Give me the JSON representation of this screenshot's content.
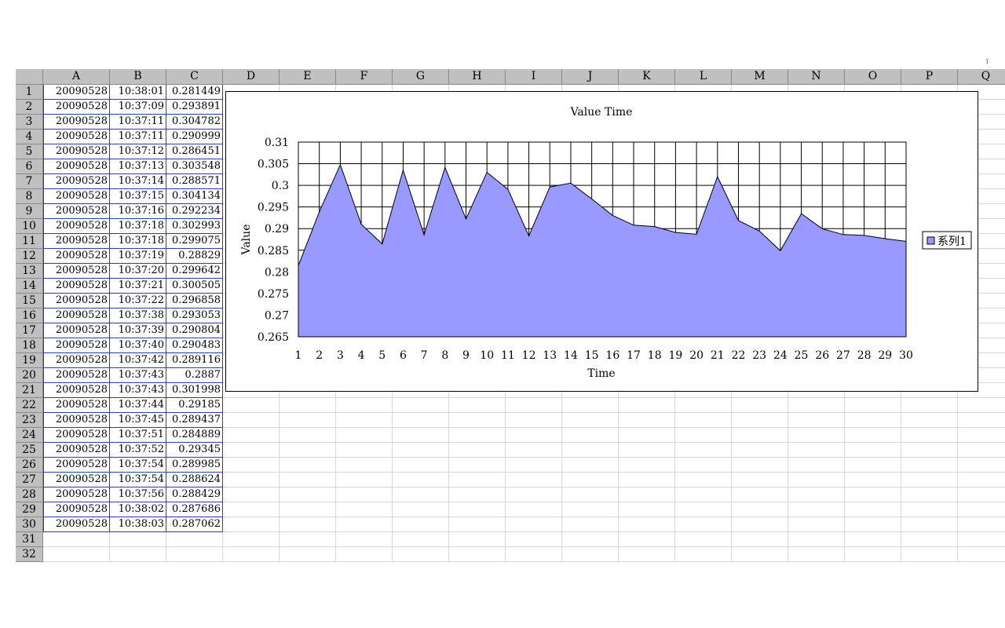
{
  "sheet": {
    "column_headers": [
      "A",
      "B",
      "C",
      "D",
      "E",
      "F",
      "G",
      "H",
      "I",
      "J",
      "K",
      "L",
      "M",
      "N",
      "O",
      "P",
      "Q"
    ],
    "row_headers": [
      "1",
      "2",
      "3",
      "4",
      "5",
      "6",
      "7",
      "8",
      "9",
      "10",
      "11",
      "12",
      "13",
      "14",
      "15",
      "16",
      "17",
      "18",
      "19",
      "20",
      "21",
      "22",
      "23",
      "24",
      "25",
      "26",
      "27",
      "28",
      "29",
      "30",
      "31",
      "32"
    ],
    "rows": [
      [
        "20090528",
        "10:38:01",
        "0.281449"
      ],
      [
        "20090528",
        "10:37:09",
        "0.293891"
      ],
      [
        "20090528",
        "10:37:11",
        "0.304782"
      ],
      [
        "20090528",
        "10:37:11",
        "0.290999"
      ],
      [
        "20090528",
        "10:37:12",
        "0.286451"
      ],
      [
        "20090528",
        "10:37:13",
        "0.303548"
      ],
      [
        "20090528",
        "10:37:14",
        "0.288571"
      ],
      [
        "20090528",
        "10:37:15",
        "0.304134"
      ],
      [
        "20090528",
        "10:37:16",
        "0.292234"
      ],
      [
        "20090528",
        "10:37:18",
        "0.302993"
      ],
      [
        "20090528",
        "10:37:18",
        "0.299075"
      ],
      [
        "20090528",
        "10:37:19",
        "0.28829"
      ],
      [
        "20090528",
        "10:37:20",
        "0.299642"
      ],
      [
        "20090528",
        "10:37:21",
        "0.300505"
      ],
      [
        "20090528",
        "10:37:22",
        "0.296858"
      ],
      [
        "20090528",
        "10:37:38",
        "0.293053"
      ],
      [
        "20090528",
        "10:37:39",
        "0.290804"
      ],
      [
        "20090528",
        "10:37:40",
        "0.290483"
      ],
      [
        "20090528",
        "10:37:42",
        "0.289116"
      ],
      [
        "20090528",
        "10:37:43",
        "0.2887"
      ],
      [
        "20090528",
        "10:37:43",
        "0.301998"
      ],
      [
        "20090528",
        "10:37:44",
        "0.29185"
      ],
      [
        "20090528",
        "10:37:45",
        "0.289437"
      ],
      [
        "20090528",
        "10:37:51",
        "0.284889"
      ],
      [
        "20090528",
        "10:37:52",
        "0.29345"
      ],
      [
        "20090528",
        "10:37:54",
        "0.289985"
      ],
      [
        "20090528",
        "10:37:54",
        "0.288624"
      ],
      [
        "20090528",
        "10:37:56",
        "0.288429"
      ],
      [
        "20090528",
        "10:38:02",
        "0.287686"
      ],
      [
        "20090528",
        "10:38:03",
        "0.287062"
      ]
    ]
  },
  "colors": {
    "header_bg": "#c0c0c0",
    "data_border": "#2f3bb5",
    "area_fill": "#9999ff"
  },
  "chart_data": {
    "type": "area",
    "title": "Value Time",
    "xlabel": "Time",
    "ylabel": "Value",
    "categories": [
      "1",
      "2",
      "3",
      "4",
      "5",
      "6",
      "7",
      "8",
      "9",
      "10",
      "11",
      "12",
      "13",
      "14",
      "15",
      "16",
      "17",
      "18",
      "19",
      "20",
      "21",
      "22",
      "23",
      "24",
      "25",
      "26",
      "27",
      "28",
      "29",
      "30"
    ],
    "series": [
      {
        "name": "系列1",
        "values": [
          0.281449,
          0.293891,
          0.304782,
          0.290999,
          0.286451,
          0.303548,
          0.288571,
          0.304134,
          0.292234,
          0.302993,
          0.299075,
          0.28829,
          0.299642,
          0.300505,
          0.296858,
          0.293053,
          0.290804,
          0.290483,
          0.289116,
          0.2887,
          0.301998,
          0.29185,
          0.289437,
          0.284889,
          0.29345,
          0.289985,
          0.288624,
          0.288429,
          0.287686,
          0.287062
        ]
      }
    ],
    "ylim": [
      0.265,
      0.31
    ],
    "yticks": [
      "0.31",
      "0.305",
      "0.3",
      "0.295",
      "0.29",
      "0.285",
      "0.28",
      "0.275",
      "0.27",
      "0.265"
    ],
    "grid": true,
    "legend": "right"
  }
}
